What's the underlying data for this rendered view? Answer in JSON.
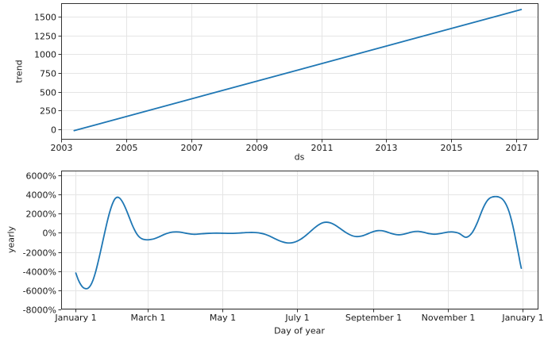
{
  "figure": {
    "background": "#ffffff",
    "line_color": "#1f77b4",
    "grid_color": "#e5e5e5",
    "axis_color": "#333333",
    "text_color": "#1a1a1a"
  },
  "chart_data": [
    {
      "type": "line",
      "title": "",
      "xlabel": "ds",
      "ylabel": "trend",
      "xlim": [
        2003.0,
        2017.68
      ],
      "ylim": [
        -140,
        1680
      ],
      "grid": true,
      "legend": "none",
      "xticks": [
        {
          "v": 2003,
          "label": "2003"
        },
        {
          "v": 2005,
          "label": "2005"
        },
        {
          "v": 2007,
          "label": "2007"
        },
        {
          "v": 2009,
          "label": "2009"
        },
        {
          "v": 2011,
          "label": "2011"
        },
        {
          "v": 2013,
          "label": "2013"
        },
        {
          "v": 2015,
          "label": "2015"
        },
        {
          "v": 2017,
          "label": "2017"
        }
      ],
      "yticks": [
        {
          "v": 0,
          "label": "0"
        },
        {
          "v": 250,
          "label": "250"
        },
        {
          "v": 500,
          "label": "500"
        },
        {
          "v": 750,
          "label": "750"
        },
        {
          "v": 1000,
          "label": "1000"
        },
        {
          "v": 1250,
          "label": "1250"
        },
        {
          "v": 1500,
          "label": "1500"
        }
      ],
      "series": [
        {
          "name": "trend",
          "color": "#1f77b4",
          "x": [
            2003.4,
            2017.15
          ],
          "y": [
            -20,
            1595
          ]
        }
      ]
    },
    {
      "type": "line",
      "title": "",
      "xlabel": "Day of year",
      "ylabel": "yearly",
      "xlim": [
        -12,
        378
      ],
      "ylim": [
        -8000,
        6500
      ],
      "grid": true,
      "legend": "none",
      "xticks": [
        {
          "v": 0,
          "label": "January 1"
        },
        {
          "v": 59,
          "label": "March 1"
        },
        {
          "v": 120,
          "label": "May 1"
        },
        {
          "v": 181,
          "label": "July 1"
        },
        {
          "v": 243,
          "label": "September 1"
        },
        {
          "v": 304,
          "label": "November 1"
        },
        {
          "v": 365,
          "label": "January 1"
        }
      ],
      "yticks": [
        {
          "v": -8000,
          "label": "-8000%"
        },
        {
          "v": -6000,
          "label": "-6000%"
        },
        {
          "v": -4000,
          "label": "-4000%"
        },
        {
          "v": -2000,
          "label": "-2000%"
        },
        {
          "v": 0,
          "label": "0%"
        },
        {
          "v": 2000,
          "label": "2000%"
        },
        {
          "v": 4000,
          "label": "4000%"
        },
        {
          "v": 6000,
          "label": "6000%"
        }
      ],
      "series": [
        {
          "name": "yearly",
          "color": "#1f77b4",
          "x": [
            0,
            2,
            4,
            6,
            8,
            10,
            12,
            14,
            16,
            18,
            20,
            22,
            24,
            26,
            28,
            30,
            32,
            34,
            36,
            38,
            40,
            42,
            44,
            46,
            48,
            50,
            52,
            54,
            56,
            58,
            60,
            62,
            64,
            66,
            68,
            70,
            72,
            74,
            76,
            78,
            80,
            82,
            84,
            86,
            88,
            90,
            92,
            94,
            96,
            98,
            100,
            103,
            106,
            109,
            112,
            115,
            118,
            121,
            124,
            127,
            130,
            133,
            136,
            139,
            142,
            145,
            148,
            151,
            154,
            157,
            160,
            163,
            166,
            169,
            172,
            175,
            178,
            181,
            184,
            187,
            190,
            193,
            196,
            199,
            202,
            205,
            208,
            211,
            214,
            217,
            220,
            223,
            226,
            229,
            232,
            235,
            238,
            241,
            244,
            247,
            250,
            253,
            256,
            259,
            262,
            265,
            268,
            271,
            274,
            277,
            280,
            283,
            286,
            289,
            292,
            295,
            298,
            301,
            304,
            307,
            310,
            312,
            314,
            316,
            318,
            320,
            322,
            324,
            326,
            328,
            330,
            332,
            334,
            336,
            338,
            340,
            342,
            344,
            346,
            348,
            350,
            352,
            354,
            356,
            358,
            360,
            362,
            363,
            364
          ],
          "y": [
            -4200,
            -4900,
            -5400,
            -5720,
            -5830,
            -5780,
            -5500,
            -4950,
            -4150,
            -3150,
            -2050,
            -900,
            250,
            1350,
            2300,
            3050,
            3550,
            3720,
            3600,
            3250,
            2750,
            2150,
            1500,
            850,
            300,
            -150,
            -450,
            -620,
            -700,
            -730,
            -720,
            -680,
            -620,
            -530,
            -420,
            -300,
            -180,
            -80,
            0,
            60,
            90,
            100,
            90,
            60,
            10,
            -40,
            -90,
            -130,
            -150,
            -150,
            -130,
            -100,
            -70,
            -50,
            -35,
            -30,
            -35,
            -45,
            -55,
            -55,
            -45,
            -25,
            0,
            25,
            40,
            40,
            15,
            -40,
            -130,
            -270,
            -440,
            -630,
            -810,
            -950,
            -1040,
            -1060,
            -1000,
            -860,
            -650,
            -370,
            -50,
            290,
            610,
            880,
            1060,
            1110,
            1040,
            870,
            630,
            360,
            90,
            -140,
            -310,
            -390,
            -370,
            -280,
            -130,
            30,
            160,
            230,
            220,
            140,
            10,
            -110,
            -190,
            -200,
            -140,
            -40,
            70,
            140,
            150,
            90,
            0,
            -90,
            -140,
            -130,
            -70,
            10,
            80,
            100,
            60,
            0,
            -120,
            -300,
            -450,
            -430,
            -250,
            50,
            500,
            1050,
            1700,
            2350,
            2900,
            3330,
            3600,
            3730,
            3780,
            3780,
            3720,
            3580,
            3300,
            2850,
            2200,
            1300,
            200,
            -1100,
            -2400,
            -3100,
            -3700
          ]
        }
      ]
    }
  ]
}
